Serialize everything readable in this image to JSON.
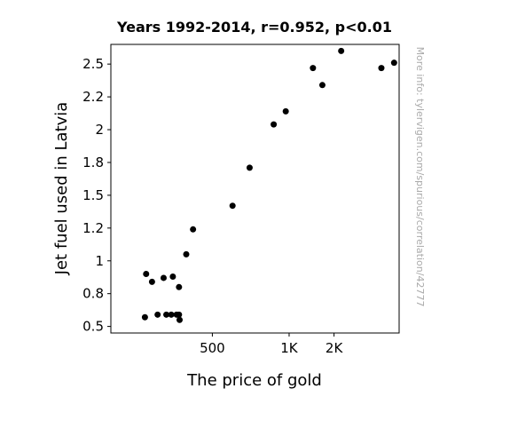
{
  "chart_data": {
    "type": "scatter",
    "title": "Years 1992-2014, r=0.952, p<0.01",
    "xlabel": "The price of gold",
    "ylabel": "Jet fuel used in Latvia",
    "xlim": [
      200,
      2700
    ],
    "ylim": [
      0.45,
      2.65
    ],
    "xticks": [
      {
        "value": 500,
        "label": "500"
      },
      {
        "value": 1000,
        "label": "1K"
      },
      {
        "value": 1500,
        "label": "2K"
      }
    ],
    "yticks": [
      {
        "value": 0.5,
        "label": "0.5"
      },
      {
        "value": 0.75,
        "label": "0.8"
      },
      {
        "value": 1.0,
        "label": "1"
      },
      {
        "value": 1.25,
        "label": "1.2"
      },
      {
        "value": 1.5,
        "label": "1.5"
      },
      {
        "value": 1.75,
        "label": "1.8"
      },
      {
        "value": 2.0,
        "label": "2"
      },
      {
        "value": 2.25,
        "label": "2.2"
      },
      {
        "value": 2.5,
        "label": "2.5"
      }
    ],
    "points": [
      {
        "x": 275,
        "y": 0.9
      },
      {
        "x": 290,
        "y": 0.84
      },
      {
        "x": 322,
        "y": 0.87
      },
      {
        "x": 350,
        "y": 0.88
      },
      {
        "x": 370,
        "y": 0.8
      },
      {
        "x": 395,
        "y": 1.05
      },
      {
        "x": 420,
        "y": 1.24
      },
      {
        "x": 272,
        "y": 0.57
      },
      {
        "x": 305,
        "y": 0.59
      },
      {
        "x": 330,
        "y": 0.59
      },
      {
        "x": 345,
        "y": 0.59
      },
      {
        "x": 362,
        "y": 0.59
      },
      {
        "x": 370,
        "y": 0.59
      },
      {
        "x": 372,
        "y": 0.55
      },
      {
        "x": 600,
        "y": 1.42
      },
      {
        "x": 700,
        "y": 1.71
      },
      {
        "x": 870,
        "y": 2.04
      },
      {
        "x": 970,
        "y": 2.14
      },
      {
        "x": 1240,
        "y": 2.47
      },
      {
        "x": 1350,
        "y": 2.34
      },
      {
        "x": 1600,
        "y": 2.6
      },
      {
        "x": 2300,
        "y": 2.47
      },
      {
        "x": 2580,
        "y": 2.51
      }
    ],
    "point_color": "#000000",
    "grid": false,
    "watermark": "More info: tylervigen.com/spurious/correlation/42777"
  }
}
